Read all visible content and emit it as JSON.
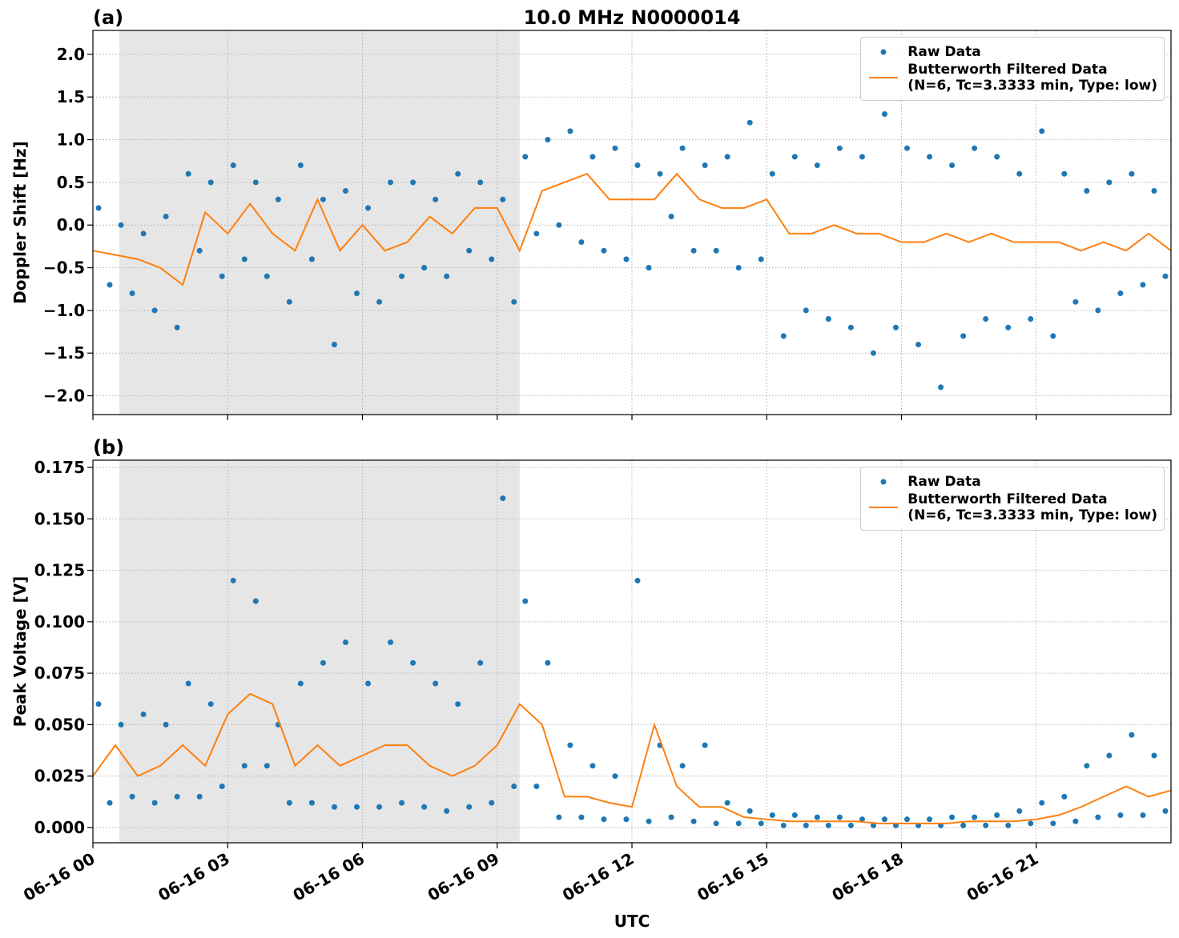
{
  "chart_data": [
    {
      "type": "line",
      "panel_label": "(a)",
      "title": "10.0 MHz N0000014",
      "ylabel": "Doppler Shift [Hz]",
      "xlim": [
        0,
        24
      ],
      "xticks": [
        0,
        3,
        6,
        9,
        12,
        15,
        18,
        21
      ],
      "ylim": [
        -2.22,
        2.28
      ],
      "yticks": [
        {
          "value": -2.0,
          "label": "−2.0"
        },
        {
          "value": -1.5,
          "label": "−1.5"
        },
        {
          "value": -1.0,
          "label": "−1.0"
        },
        {
          "value": -0.5,
          "label": "−0.5"
        },
        {
          "value": 0.0,
          "label": "0.0"
        },
        0.5,
        {
          "value": 1.0,
          "label": "1.0"
        },
        1.5,
        {
          "value": 2.0,
          "label": "2.0"
        }
      ],
      "grid": true,
      "legend": "upper right",
      "shaded_span": [
        0.59,
        9.5
      ],
      "series": [
        {
          "name": "Raw Data",
          "color": "#1f77b4",
          "mode": "markers",
          "x": [
            0.125,
            0.375,
            0.625,
            0.875,
            1.125,
            1.375,
            1.625,
            1.875,
            2.125,
            2.375,
            2.625,
            2.875,
            3.125,
            3.375,
            3.625,
            3.875,
            4.125,
            4.375,
            4.625,
            4.875,
            5.125,
            5.375,
            5.625,
            5.875,
            6.125,
            6.375,
            6.625,
            6.875,
            7.125,
            7.375,
            7.625,
            7.875,
            8.125,
            8.375,
            8.625,
            8.875,
            9.125,
            9.375,
            9.625,
            9.875,
            10.125,
            10.375,
            10.625,
            10.875,
            11.125,
            11.375,
            11.625,
            11.875,
            12.125,
            12.375,
            12.625,
            12.875,
            13.125,
            13.375,
            13.625,
            13.875,
            14.125,
            14.375,
            14.625,
            14.875,
            15.125,
            15.375,
            15.625,
            15.875,
            16.125,
            16.375,
            16.625,
            16.875,
            17.125,
            17.375,
            17.625,
            17.875,
            18.125,
            18.375,
            18.625,
            18.875,
            19.125,
            19.375,
            19.625,
            19.875,
            20.125,
            20.375,
            20.625,
            20.875,
            21.125,
            21.375,
            21.625,
            21.875,
            22.125,
            22.375,
            22.625,
            22.875,
            23.125,
            23.375,
            23.625,
            23.875
          ],
          "values": [
            0.2,
            -0.7,
            0.0,
            -0.8,
            -0.1,
            -1.0,
            0.1,
            -1.2,
            0.6,
            -0.3,
            0.5,
            -0.6,
            0.7,
            -0.4,
            0.5,
            -0.6,
            0.3,
            -0.9,
            0.7,
            -0.4,
            0.3,
            -1.4,
            0.4,
            -0.8,
            0.2,
            -0.9,
            0.5,
            -0.6,
            0.5,
            -0.5,
            0.3,
            -0.6,
            0.6,
            -0.3,
            0.5,
            -0.4,
            0.3,
            -0.9,
            0.8,
            -0.1,
            1.0,
            0.0,
            1.1,
            -0.2,
            0.8,
            -0.3,
            0.9,
            -0.4,
            0.7,
            -0.5,
            0.6,
            0.1,
            0.9,
            -0.3,
            0.7,
            -0.3,
            0.8,
            -0.5,
            1.2,
            -0.4,
            0.6,
            -1.3,
            0.8,
            -1.0,
            0.7,
            -1.1,
            0.9,
            -1.2,
            0.8,
            -1.5,
            1.3,
            -1.2,
            0.9,
            -1.4,
            0.8,
            -1.9,
            0.7,
            -1.3,
            0.9,
            -1.1,
            0.8,
            -1.2,
            0.6,
            -1.1,
            1.1,
            -1.3,
            0.6,
            -0.9,
            0.4,
            -1.0,
            0.5,
            -0.8,
            0.6,
            -0.7,
            0.4,
            -0.6
          ]
        },
        {
          "name": "Butterworth Filtered Data\n(N=6, Tc=3.3333 min, Type: low)",
          "color": "#ff7f0e",
          "mode": "lines",
          "x": [
            0,
            0.5,
            1,
            1.5,
            2,
            2.5,
            3,
            3.5,
            4,
            4.5,
            5,
            5.5,
            6,
            6.5,
            7,
            7.5,
            8,
            8.5,
            9,
            9.5,
            10,
            10.5,
            11,
            11.5,
            12,
            12.5,
            13,
            13.5,
            14,
            14.5,
            15,
            15.5,
            16,
            16.5,
            17,
            17.5,
            18,
            18.5,
            19,
            19.5,
            20,
            20.5,
            21,
            21.5,
            22,
            22.5,
            23,
            23.5,
            24
          ],
          "values": [
            -0.3,
            -0.35,
            -0.4,
            -0.5,
            -0.7,
            0.15,
            -0.1,
            0.25,
            -0.1,
            -0.3,
            0.3,
            -0.3,
            0.0,
            -0.3,
            -0.2,
            0.1,
            -0.1,
            0.2,
            0.2,
            -0.3,
            0.4,
            0.5,
            0.6,
            0.3,
            0.3,
            0.3,
            0.6,
            0.3,
            0.2,
            0.2,
            0.3,
            -0.1,
            -0.1,
            0.0,
            -0.1,
            -0.1,
            -0.2,
            -0.2,
            -0.1,
            -0.2,
            -0.1,
            -0.2,
            -0.2,
            -0.2,
            -0.3,
            -0.2,
            -0.3,
            -0.1,
            -0.3
          ]
        }
      ]
    },
    {
      "type": "line",
      "panel_label": "(b)",
      "ylabel": "Peak Voltage [V]",
      "xlabel": "UTC",
      "xlim": [
        0,
        24
      ],
      "xticks": [
        {
          "value": 0,
          "label": "06-16 00"
        },
        {
          "value": 3,
          "label": "06-16 03"
        },
        {
          "value": 6,
          "label": "06-16 06"
        },
        {
          "value": 9,
          "label": "06-16 09"
        },
        {
          "value": 12,
          "label": "06-16 12"
        },
        {
          "value": 15,
          "label": "06-16 15"
        },
        {
          "value": 18,
          "label": "06-16 18"
        },
        {
          "value": 21,
          "label": "06-16 21"
        }
      ],
      "ylim": [
        -0.0074,
        0.1785
      ],
      "yticks": [
        {
          "value": 0,
          "label": "0.000"
        },
        {
          "value": 0.025,
          "label": "0.025"
        },
        {
          "value": 0.05,
          "label": "0.050"
        },
        {
          "value": 0.075,
          "label": "0.075"
        },
        {
          "value": 0.1,
          "label": "0.100"
        },
        {
          "value": 0.125,
          "label": "0.125"
        },
        {
          "value": 0.15,
          "label": "0.150"
        },
        {
          "value": 0.175,
          "label": "0.175"
        }
      ],
      "grid": true,
      "legend": "upper right",
      "shaded_span": [
        0.59,
        9.5
      ],
      "series": [
        {
          "name": "Raw Data",
          "color": "#1f77b4",
          "mode": "markers",
          "x": [
            0.125,
            0.375,
            0.625,
            0.875,
            1.125,
            1.375,
            1.625,
            1.875,
            2.125,
            2.375,
            2.625,
            2.875,
            3.125,
            3.375,
            3.625,
            3.875,
            4.125,
            4.375,
            4.625,
            4.875,
            5.125,
            5.375,
            5.625,
            5.875,
            6.125,
            6.375,
            6.625,
            6.875,
            7.125,
            7.375,
            7.625,
            7.875,
            8.125,
            8.375,
            8.625,
            8.875,
            9.125,
            9.375,
            9.625,
            9.875,
            10.125,
            10.375,
            10.625,
            10.875,
            11.125,
            11.375,
            11.625,
            11.875,
            12.125,
            12.375,
            12.625,
            12.875,
            13.125,
            13.375,
            13.625,
            13.875,
            14.125,
            14.375,
            14.625,
            14.875,
            15.125,
            15.375,
            15.625,
            15.875,
            16.125,
            16.375,
            16.625,
            16.875,
            17.125,
            17.375,
            17.625,
            17.875,
            18.125,
            18.375,
            18.625,
            18.875,
            19.125,
            19.375,
            19.625,
            19.875,
            20.125,
            20.375,
            20.625,
            20.875,
            21.125,
            21.375,
            21.625,
            21.875,
            22.125,
            22.375,
            22.625,
            22.875,
            23.125,
            23.375,
            23.625,
            23.875
          ],
          "values": [
            0.06,
            0.012,
            0.05,
            0.015,
            0.055,
            0.012,
            0.05,
            0.015,
            0.07,
            0.015,
            0.06,
            0.02,
            0.12,
            0.03,
            0.11,
            0.03,
            0.05,
            0.012,
            0.07,
            0.012,
            0.08,
            0.01,
            0.09,
            0.01,
            0.07,
            0.01,
            0.09,
            0.012,
            0.08,
            0.01,
            0.07,
            0.008,
            0.06,
            0.01,
            0.08,
            0.012,
            0.16,
            0.02,
            0.11,
            0.02,
            0.08,
            0.005,
            0.04,
            0.005,
            0.03,
            0.004,
            0.025,
            0.004,
            0.12,
            0.003,
            0.04,
            0.005,
            0.03,
            0.003,
            0.04,
            0.002,
            0.012,
            0.002,
            0.008,
            0.002,
            0.006,
            0.001,
            0.006,
            0.001,
            0.005,
            0.001,
            0.005,
            0.001,
            0.004,
            0.001,
            0.004,
            0.001,
            0.004,
            0.001,
            0.004,
            0.001,
            0.005,
            0.001,
            0.005,
            0.001,
            0.006,
            0.001,
            0.008,
            0.002,
            0.012,
            0.002,
            0.015,
            0.003,
            0.03,
            0.005,
            0.035,
            0.006,
            0.045,
            0.006,
            0.035,
            0.008
          ]
        },
        {
          "name": "Butterworth Filtered Data\n(N=6, Tc=3.3333 min, Type: low)",
          "color": "#ff7f0e",
          "mode": "lines",
          "x": [
            0,
            0.5,
            1,
            1.5,
            2,
            2.5,
            3,
            3.5,
            4,
            4.5,
            5,
            5.5,
            6,
            6.5,
            7,
            7.5,
            8,
            8.5,
            9,
            9.5,
            10,
            10.5,
            11,
            11.5,
            12,
            12.5,
            13,
            13.5,
            14,
            14.5,
            15,
            15.5,
            16,
            16.5,
            17,
            17.5,
            18,
            18.5,
            19,
            19.5,
            20,
            20.5,
            21,
            21.5,
            22,
            22.5,
            23,
            23.5,
            24
          ],
          "values": [
            0.025,
            0.04,
            0.025,
            0.03,
            0.04,
            0.03,
            0.055,
            0.065,
            0.06,
            0.03,
            0.04,
            0.03,
            0.035,
            0.04,
            0.04,
            0.03,
            0.025,
            0.03,
            0.04,
            0.06,
            0.05,
            0.015,
            0.015,
            0.012,
            0.01,
            0.05,
            0.02,
            0.01,
            0.01,
            0.005,
            0.004,
            0.003,
            0.003,
            0.003,
            0.003,
            0.002,
            0.002,
            0.002,
            0.002,
            0.003,
            0.003,
            0.003,
            0.004,
            0.006,
            0.01,
            0.015,
            0.02,
            0.015,
            0.018
          ]
        }
      ]
    }
  ]
}
